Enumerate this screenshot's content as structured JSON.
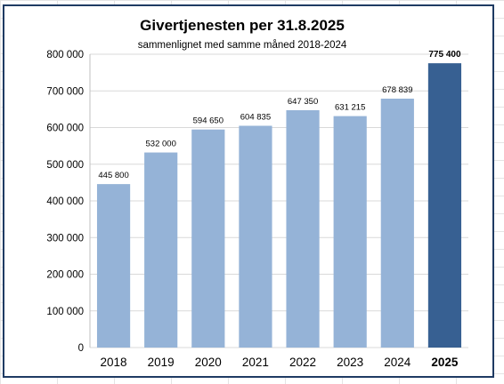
{
  "chart_data": {
    "type": "bar",
    "title": "Givertjenesten per 31.8.2025",
    "subtitle": "sammenlignet med samme måned 2018-2024",
    "xlabel": "",
    "ylabel": "",
    "categories": [
      "2018",
      "2019",
      "2020",
      "2021",
      "2022",
      "2023",
      "2024",
      "2025"
    ],
    "values": [
      445800,
      532000,
      594650,
      604835,
      647350,
      631215,
      678839,
      775400
    ],
    "data_labels": [
      "445 800",
      "532 000",
      "594 650",
      "604 835",
      "647 350",
      "631 215",
      "678 839",
      "775 400"
    ],
    "highlight_index": 7,
    "ylim": [
      0,
      800000
    ],
    "yticks": [
      0,
      100000,
      200000,
      300000,
      400000,
      500000,
      600000,
      700000,
      800000
    ],
    "ytick_labels": [
      "0",
      "100 000",
      "200 000",
      "300 000",
      "400 000",
      "500 000",
      "600 000",
      "700 000",
      "800 000"
    ],
    "grid": true,
    "legend": "none",
    "colors": {
      "bar": "#95b3d7",
      "bar_highlight": "#376092",
      "gridline": "#d9d9d9",
      "frame": "#1f3b63"
    }
  }
}
